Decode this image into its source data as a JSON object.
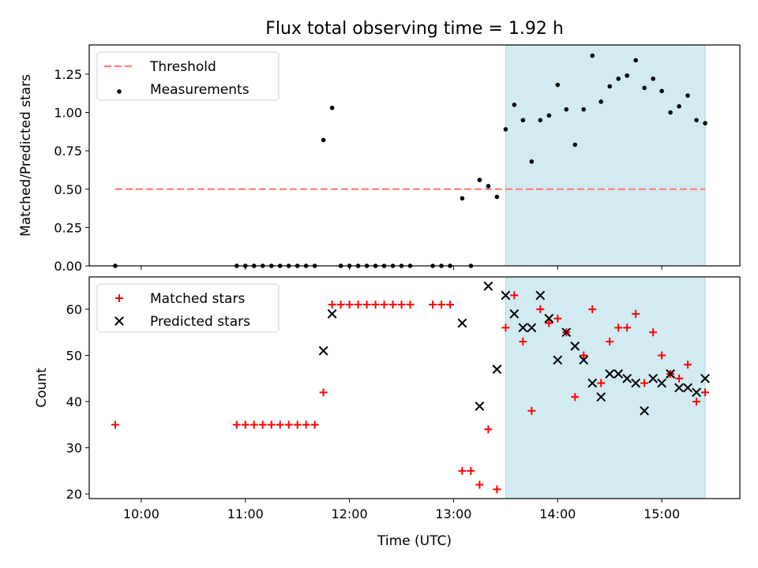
{
  "figure_title": "Flux total observing time = 1.92 h",
  "colors": {
    "threshold": "#ff7f7f",
    "measurement": "#000000",
    "matched": "#ff0000",
    "predicted": "#000000",
    "shade": "#add8e6"
  },
  "chart_data": [
    {
      "type": "scatter",
      "title": "Flux total observing time = 1.92 h",
      "xlabel": "",
      "ylabel": "Matched/Predicted stars",
      "xlim": [
        "09:30",
        "15:45"
      ],
      "ylim": [
        0,
        1.44
      ],
      "x_ticks": [
        "10:00",
        "11:00",
        "12:00",
        "13:00",
        "14:00",
        "15:00"
      ],
      "y_ticks": [
        0.0,
        0.25,
        0.5,
        0.75,
        1.0,
        1.25
      ],
      "y_tick_labels": [
        "0.00",
        "0.25",
        "0.50",
        "0.75",
        "1.00",
        "1.25"
      ],
      "legend_position": "top-left",
      "shaded_span": {
        "from": "13:30",
        "to": "15:25"
      },
      "series": [
        {
          "name": "Threshold",
          "style": "dashed-line",
          "points": [
            [
              "09:45",
              0.5
            ],
            [
              "15:25",
              0.5
            ]
          ]
        },
        {
          "name": "Measurements",
          "style": "dot",
          "points": [
            [
              "09:45",
              0.0
            ],
            [
              "10:55",
              0.0
            ],
            [
              "11:00",
              0.0
            ],
            [
              "11:05",
              0.0
            ],
            [
              "11:10",
              0.0
            ],
            [
              "11:15",
              0.0
            ],
            [
              "11:20",
              0.0
            ],
            [
              "11:25",
              0.0
            ],
            [
              "11:30",
              0.0
            ],
            [
              "11:35",
              0.0
            ],
            [
              "11:40",
              0.0
            ],
            [
              "11:45",
              0.82
            ],
            [
              "11:50",
              1.03
            ],
            [
              "11:55",
              0.0
            ],
            [
              "12:00",
              0.0
            ],
            [
              "12:05",
              0.0
            ],
            [
              "12:10",
              0.0
            ],
            [
              "12:15",
              0.0
            ],
            [
              "12:20",
              0.0
            ],
            [
              "12:25",
              0.0
            ],
            [
              "12:30",
              0.0
            ],
            [
              "12:35",
              0.0
            ],
            [
              "12:48",
              0.0
            ],
            [
              "12:53",
              0.0
            ],
            [
              "12:58",
              0.0
            ],
            [
              "13:05",
              0.44
            ],
            [
              "13:10",
              0.0
            ],
            [
              "13:15",
              0.56
            ],
            [
              "13:20",
              0.52
            ],
            [
              "13:25",
              0.45
            ],
            [
              "13:30",
              0.89
            ],
            [
              "13:35",
              1.05
            ],
            [
              "13:40",
              0.95
            ],
            [
              "13:45",
              0.68
            ],
            [
              "13:50",
              0.95
            ],
            [
              "13:55",
              0.98
            ],
            [
              "14:00",
              1.18
            ],
            [
              "14:05",
              1.02
            ],
            [
              "14:10",
              0.79
            ],
            [
              "14:15",
              1.02
            ],
            [
              "14:20",
              1.37
            ],
            [
              "14:25",
              1.07
            ],
            [
              "14:30",
              1.17
            ],
            [
              "14:35",
              1.22
            ],
            [
              "14:40",
              1.24
            ],
            [
              "14:45",
              1.34
            ],
            [
              "14:50",
              1.16
            ],
            [
              "14:55",
              1.22
            ],
            [
              "15:00",
              1.14
            ],
            [
              "15:05",
              1.0
            ],
            [
              "15:10",
              1.04
            ],
            [
              "15:15",
              1.11
            ],
            [
              "15:20",
              0.95
            ],
            [
              "15:25",
              0.93
            ]
          ]
        }
      ]
    },
    {
      "type": "scatter",
      "title": "",
      "xlabel": "Time (UTC)",
      "ylabel": "Count",
      "xlim": [
        "09:30",
        "15:45"
      ],
      "ylim": [
        19,
        67
      ],
      "x_ticks": [
        "10:00",
        "11:00",
        "12:00",
        "13:00",
        "14:00",
        "15:00"
      ],
      "y_ticks": [
        20,
        30,
        40,
        50,
        60
      ],
      "legend_position": "top-left",
      "shaded_span": {
        "from": "13:30",
        "to": "15:25"
      },
      "series": [
        {
          "name": "Matched stars",
          "marker": "plus",
          "points": [
            [
              "09:45",
              35
            ],
            [
              "10:55",
              35
            ],
            [
              "11:00",
              35
            ],
            [
              "11:05",
              35
            ],
            [
              "11:10",
              35
            ],
            [
              "11:15",
              35
            ],
            [
              "11:20",
              35
            ],
            [
              "11:25",
              35
            ],
            [
              "11:30",
              35
            ],
            [
              "11:35",
              35
            ],
            [
              "11:40",
              35
            ],
            [
              "11:45",
              42
            ],
            [
              "11:50",
              61
            ],
            [
              "11:55",
              61
            ],
            [
              "12:00",
              61
            ],
            [
              "12:05",
              61
            ],
            [
              "12:10",
              61
            ],
            [
              "12:15",
              61
            ],
            [
              "12:20",
              61
            ],
            [
              "12:25",
              61
            ],
            [
              "12:30",
              61
            ],
            [
              "12:35",
              61
            ],
            [
              "12:48",
              61
            ],
            [
              "12:53",
              61
            ],
            [
              "12:58",
              61
            ],
            [
              "13:05",
              25
            ],
            [
              "13:10",
              25
            ],
            [
              "13:15",
              22
            ],
            [
              "13:20",
              34
            ],
            [
              "13:25",
              21
            ],
            [
              "13:30",
              56
            ],
            [
              "13:35",
              63
            ],
            [
              "13:40",
              53
            ],
            [
              "13:45",
              38
            ],
            [
              "13:50",
              60
            ],
            [
              "13:55",
              57
            ],
            [
              "14:00",
              58
            ],
            [
              "14:05",
              55
            ],
            [
              "14:10",
              41
            ],
            [
              "14:15",
              50
            ],
            [
              "14:20",
              60
            ],
            [
              "14:25",
              44
            ],
            [
              "14:30",
              53
            ],
            [
              "14:35",
              56
            ],
            [
              "14:40",
              56
            ],
            [
              "14:45",
              59
            ],
            [
              "14:50",
              44
            ],
            [
              "14:55",
              55
            ],
            [
              "15:00",
              50
            ],
            [
              "15:05",
              46
            ],
            [
              "15:10",
              45
            ],
            [
              "15:15",
              48
            ],
            [
              "15:20",
              40
            ],
            [
              "15:25",
              42
            ]
          ]
        },
        {
          "name": "Predicted stars",
          "marker": "x",
          "points": [
            [
              "11:45",
              51
            ],
            [
              "11:50",
              59
            ],
            [
              "13:05",
              57
            ],
            [
              "13:15",
              39
            ],
            [
              "13:20",
              65
            ],
            [
              "13:25",
              47
            ],
            [
              "13:30",
              63
            ],
            [
              "13:35",
              59
            ],
            [
              "13:40",
              56
            ],
            [
              "13:45",
              56
            ],
            [
              "13:50",
              63
            ],
            [
              "13:55",
              58
            ],
            [
              "14:00",
              49
            ],
            [
              "14:05",
              55
            ],
            [
              "14:10",
              52
            ],
            [
              "14:15",
              49
            ],
            [
              "14:20",
              44
            ],
            [
              "14:25",
              41
            ],
            [
              "14:30",
              46
            ],
            [
              "14:35",
              46
            ],
            [
              "14:40",
              45
            ],
            [
              "14:45",
              44
            ],
            [
              "14:50",
              38
            ],
            [
              "14:55",
              45
            ],
            [
              "15:00",
              44
            ],
            [
              "15:05",
              46
            ],
            [
              "15:10",
              43
            ],
            [
              "15:15",
              43
            ],
            [
              "15:20",
              42
            ],
            [
              "15:25",
              45
            ]
          ]
        }
      ]
    }
  ]
}
